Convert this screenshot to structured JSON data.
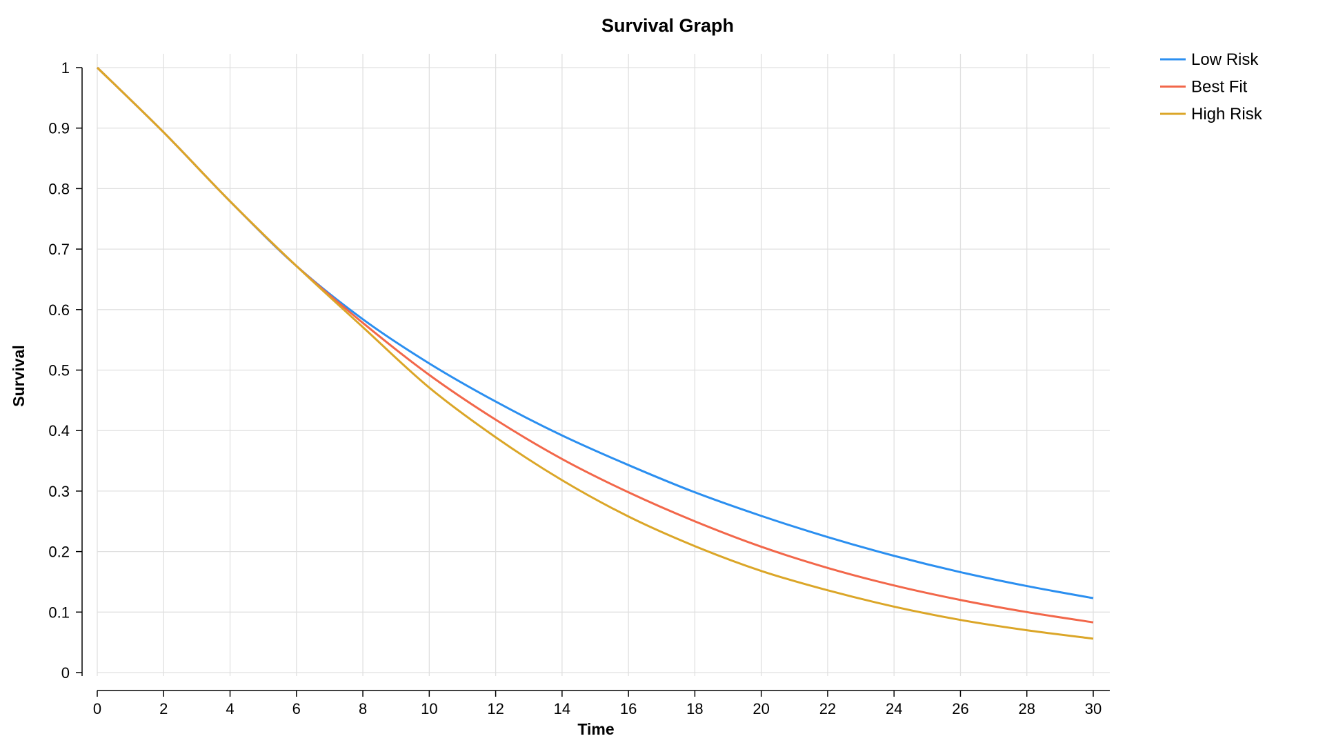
{
  "chart_data": {
    "type": "line",
    "title": "Survival Graph",
    "xlabel": "Time",
    "ylabel": "Survival",
    "xlim": [
      0,
      30
    ],
    "ylim": [
      0,
      1
    ],
    "x_ticks": [
      0,
      2,
      4,
      6,
      8,
      10,
      12,
      14,
      16,
      18,
      20,
      22,
      24,
      26,
      28,
      30
    ],
    "y_ticks": [
      0,
      0.1,
      0.2,
      0.3,
      0.4,
      0.5,
      0.6,
      0.7,
      0.8,
      0.9,
      1
    ],
    "grid": true,
    "legend_position": "top-right",
    "x": [
      0,
      2,
      4,
      6,
      8,
      10,
      12,
      14,
      16,
      18,
      20,
      22,
      24,
      26,
      28,
      30
    ],
    "series": [
      {
        "name": "Low Risk",
        "color": "#2b8ff0",
        "values": [
          1.0,
          0.893,
          0.779,
          0.672,
          0.584,
          0.511,
          0.448,
          0.392,
          0.343,
          0.298,
          0.259,
          0.224,
          0.193,
          0.166,
          0.143,
          0.123
        ]
      },
      {
        "name": "Best Fit",
        "color": "#f2674a",
        "values": [
          1.0,
          0.893,
          0.779,
          0.672,
          0.578,
          0.492,
          0.418,
          0.353,
          0.298,
          0.25,
          0.208,
          0.173,
          0.144,
          0.12,
          0.1,
          0.083
        ]
      },
      {
        "name": "High Risk",
        "color": "#dba628",
        "values": [
          1.0,
          0.893,
          0.779,
          0.672,
          0.571,
          0.471,
          0.389,
          0.318,
          0.258,
          0.209,
          0.168,
          0.136,
          0.109,
          0.087,
          0.07,
          0.056
        ]
      }
    ]
  }
}
